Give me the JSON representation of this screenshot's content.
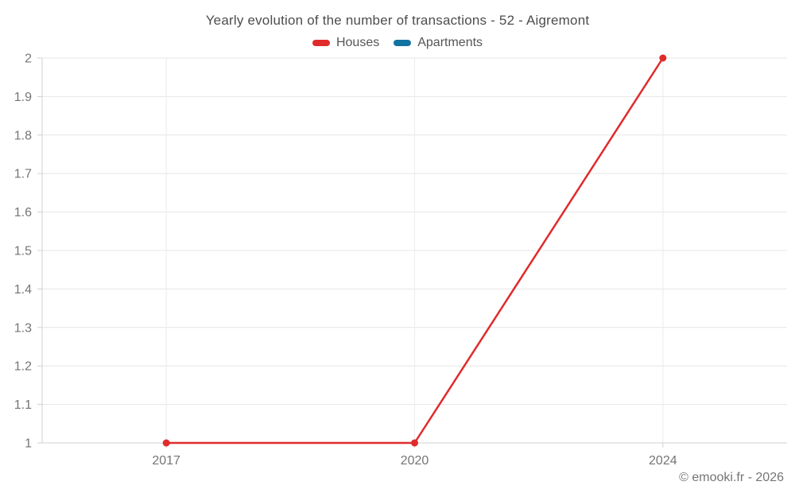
{
  "page": {
    "footer": "© emooki.fr - 2026",
    "background": "#ffffff"
  },
  "chart_data": {
    "type": "line",
    "title": "Yearly evolution of the number of transactions - 52 - Aigremont",
    "categories": [
      "2017",
      "2020",
      "2024"
    ],
    "series": [
      {
        "name": "Houses",
        "color": "#e02b2b",
        "values": [
          1,
          1,
          2
        ]
      },
      {
        "name": "Apartments",
        "color": "#1272a2",
        "values": []
      }
    ],
    "xlabel": "",
    "ylabel": "",
    "ylim": [
      1,
      2
    ],
    "ytick_step": 0.1,
    "yticks": [
      1,
      1.1,
      1.2,
      1.3,
      1.4,
      1.5,
      1.6,
      1.7,
      1.8,
      1.9,
      2
    ],
    "grid": true,
    "legend_position": "top",
    "marker": "circle",
    "colors": {
      "grid": "#e6e6e6",
      "vgrid": "#ececec",
      "axis": "#d0d0d0",
      "tick_text": "#757575",
      "title_text": "#4d4d4d",
      "legend_text": "#555555",
      "footer_text": "#757575"
    }
  }
}
